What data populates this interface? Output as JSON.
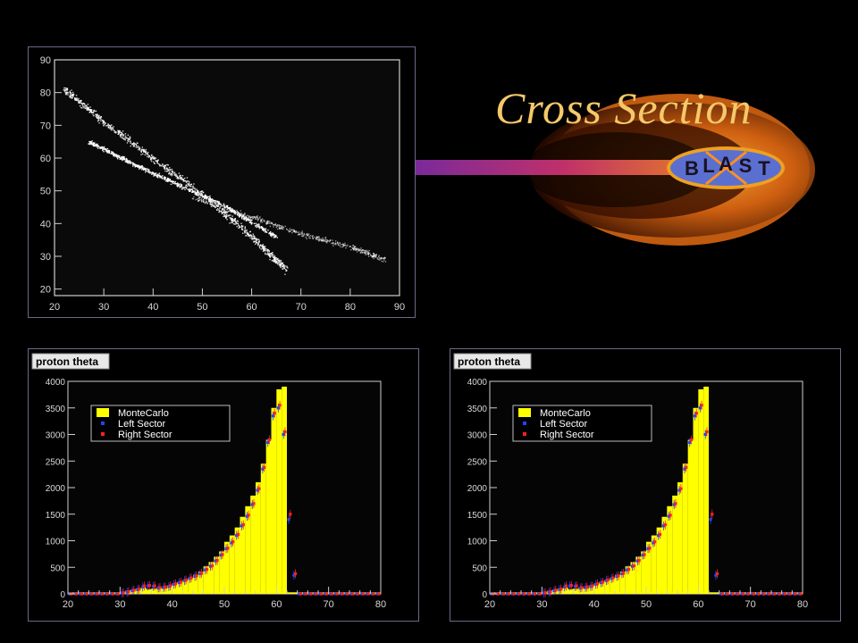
{
  "slide": {
    "title": "Cross Section",
    "logo_letters": [
      "B",
      "L",
      "A",
      "S",
      "T"
    ],
    "colors": {
      "title": "#f5c86a",
      "background": "#000000",
      "logo_bg": "#5a6fd0",
      "montecarlo": "#ffff00",
      "left_sector": "#2244ff",
      "right_sector": "#ff2020"
    }
  },
  "chart_data": [
    {
      "type": "scatter",
      "title": "",
      "xlabel": "",
      "ylabel": "",
      "xlim": [
        20,
        90
      ],
      "ylim": [
        18,
        90
      ],
      "xticks": [
        "20",
        "30",
        "40",
        "50",
        "60",
        "70",
        "80",
        "90"
      ],
      "yticks": [
        "20",
        "30",
        "40",
        "50",
        "60",
        "70",
        "80",
        "90"
      ],
      "grid": false,
      "series": [
        {
          "band": "steep",
          "x": [
            22,
            30,
            40,
            50,
            60,
            67
          ],
          "y": [
            81,
            71,
            60,
            49,
            36,
            26
          ],
          "width": 2.0
        },
        {
          "band": "dense",
          "x": [
            27,
            35,
            45,
            55,
            65
          ],
          "y": [
            65,
            59,
            52,
            45,
            36
          ],
          "width": 1.2
        },
        {
          "band": "faint",
          "x": [
            48,
            60,
            70,
            80,
            87
          ],
          "y": [
            48,
            42,
            37,
            33,
            29
          ],
          "width": 1.5
        }
      ]
    },
    {
      "type": "bar",
      "title": "proton theta",
      "xlim": [
        20,
        80
      ],
      "ylim": [
        0,
        4000
      ],
      "xticks": [
        "20",
        "30",
        "40",
        "50",
        "60",
        "70",
        "80"
      ],
      "yticks": [
        "0",
        "500",
        "1000",
        "1500",
        "2000",
        "2500",
        "3000",
        "3500",
        "4000"
      ],
      "legend_position": "top-left",
      "bin_width": 1,
      "x": [
        20,
        21,
        22,
        23,
        24,
        25,
        26,
        27,
        28,
        29,
        30,
        31,
        32,
        33,
        34,
        35,
        36,
        37,
        38,
        39,
        40,
        41,
        42,
        43,
        44,
        45,
        46,
        47,
        48,
        49,
        50,
        51,
        52,
        53,
        54,
        55,
        56,
        57,
        58,
        59,
        60,
        61,
        62,
        63,
        64,
        65,
        66,
        67,
        68,
        69,
        70,
        71,
        72,
        73,
        74,
        75,
        76,
        77,
        78,
        79
      ],
      "series": [
        {
          "name": "MonteCarlo",
          "values": [
            0,
            0,
            0,
            0,
            0,
            0,
            0,
            0,
            0,
            20,
            40,
            60,
            80,
            100,
            120,
            90,
            100,
            120,
            100,
            160,
            200,
            230,
            260,
            300,
            360,
            420,
            520,
            600,
            700,
            800,
            980,
            1100,
            1250,
            1450,
            1650,
            1850,
            2100,
            2450,
            2900,
            3500,
            3850,
            3900,
            0,
            0,
            0,
            0,
            0,
            0,
            0,
            0,
            0,
            0,
            0,
            0,
            0,
            0,
            0,
            0,
            0,
            0
          ]
        },
        {
          "name": "Left Sector",
          "values": [
            0,
            0,
            0,
            0,
            0,
            0,
            0,
            0,
            0,
            0,
            15,
            30,
            60,
            80,
            130,
            150,
            140,
            110,
            120,
            140,
            180,
            210,
            250,
            290,
            330,
            380,
            450,
            520,
            620,
            730,
            850,
            960,
            1100,
            1280,
            1460,
            1680,
            1950,
            2350,
            2850,
            3350,
            3500,
            3000,
            1400,
            350,
            0,
            0,
            0,
            0,
            0,
            0,
            0,
            0,
            0,
            0,
            0,
            0,
            0,
            0,
            0,
            0
          ]
        },
        {
          "name": "Right Sector",
          "values": [
            0,
            0,
            0,
            0,
            0,
            0,
            0,
            0,
            0,
            0,
            20,
            40,
            70,
            90,
            150,
            160,
            150,
            120,
            130,
            150,
            190,
            220,
            260,
            300,
            340,
            390,
            460,
            530,
            630,
            740,
            860,
            980,
            1120,
            1300,
            1480,
            1700,
            1980,
            2380,
            2900,
            3400,
            3550,
            3050,
            1500,
            380,
            0,
            0,
            0,
            0,
            0,
            0,
            0,
            0,
            0,
            0,
            0,
            0,
            0,
            0,
            0,
            0
          ]
        }
      ]
    },
    {
      "type": "bar",
      "title": "proton theta",
      "xlim": [
        20,
        80
      ],
      "ylim": [
        0,
        4000
      ],
      "xticks": [
        "20",
        "30",
        "40",
        "50",
        "60",
        "70",
        "80"
      ],
      "yticks": [
        "0",
        "500",
        "1000",
        "1500",
        "2000",
        "2500",
        "3000",
        "3500",
        "4000"
      ],
      "legend_position": "top-left",
      "bin_width": 1,
      "x": [
        20,
        21,
        22,
        23,
        24,
        25,
        26,
        27,
        28,
        29,
        30,
        31,
        32,
        33,
        34,
        35,
        36,
        37,
        38,
        39,
        40,
        41,
        42,
        43,
        44,
        45,
        46,
        47,
        48,
        49,
        50,
        51,
        52,
        53,
        54,
        55,
        56,
        57,
        58,
        59,
        60,
        61,
        62,
        63,
        64,
        65,
        66,
        67,
        68,
        69,
        70,
        71,
        72,
        73,
        74,
        75,
        76,
        77,
        78,
        79
      ],
      "series": [
        {
          "name": "MonteCarlo",
          "values": [
            0,
            0,
            0,
            0,
            0,
            0,
            0,
            0,
            0,
            20,
            40,
            60,
            80,
            100,
            120,
            90,
            100,
            120,
            100,
            160,
            200,
            230,
            260,
            300,
            360,
            420,
            520,
            600,
            700,
            800,
            980,
            1100,
            1250,
            1450,
            1650,
            1850,
            2100,
            2450,
            2900,
            3500,
            3850,
            3900,
            0,
            0,
            0,
            0,
            0,
            0,
            0,
            0,
            0,
            0,
            0,
            0,
            0,
            0,
            0,
            0,
            0,
            0
          ]
        },
        {
          "name": "Left Sector",
          "values": [
            0,
            0,
            0,
            0,
            0,
            0,
            0,
            0,
            0,
            0,
            15,
            30,
            60,
            80,
            130,
            150,
            140,
            110,
            120,
            140,
            180,
            210,
            250,
            290,
            330,
            380,
            450,
            520,
            620,
            730,
            850,
            960,
            1100,
            1280,
            1460,
            1680,
            1950,
            2350,
            2850,
            3350,
            3500,
            3000,
            1400,
            350,
            0,
            0,
            0,
            0,
            0,
            0,
            0,
            0,
            0,
            0,
            0,
            0,
            0,
            0,
            0,
            0
          ]
        },
        {
          "name": "Right Sector",
          "values": [
            0,
            0,
            0,
            0,
            0,
            0,
            0,
            0,
            0,
            0,
            20,
            40,
            70,
            90,
            150,
            160,
            150,
            120,
            130,
            150,
            190,
            220,
            260,
            300,
            340,
            390,
            460,
            530,
            630,
            740,
            860,
            980,
            1120,
            1300,
            1480,
            1700,
            1980,
            2380,
            2900,
            3400,
            3550,
            3050,
            1500,
            380,
            0,
            0,
            0,
            0,
            0,
            0,
            0,
            0,
            0,
            0,
            0,
            0,
            0,
            0,
            0,
            0
          ]
        }
      ]
    }
  ]
}
